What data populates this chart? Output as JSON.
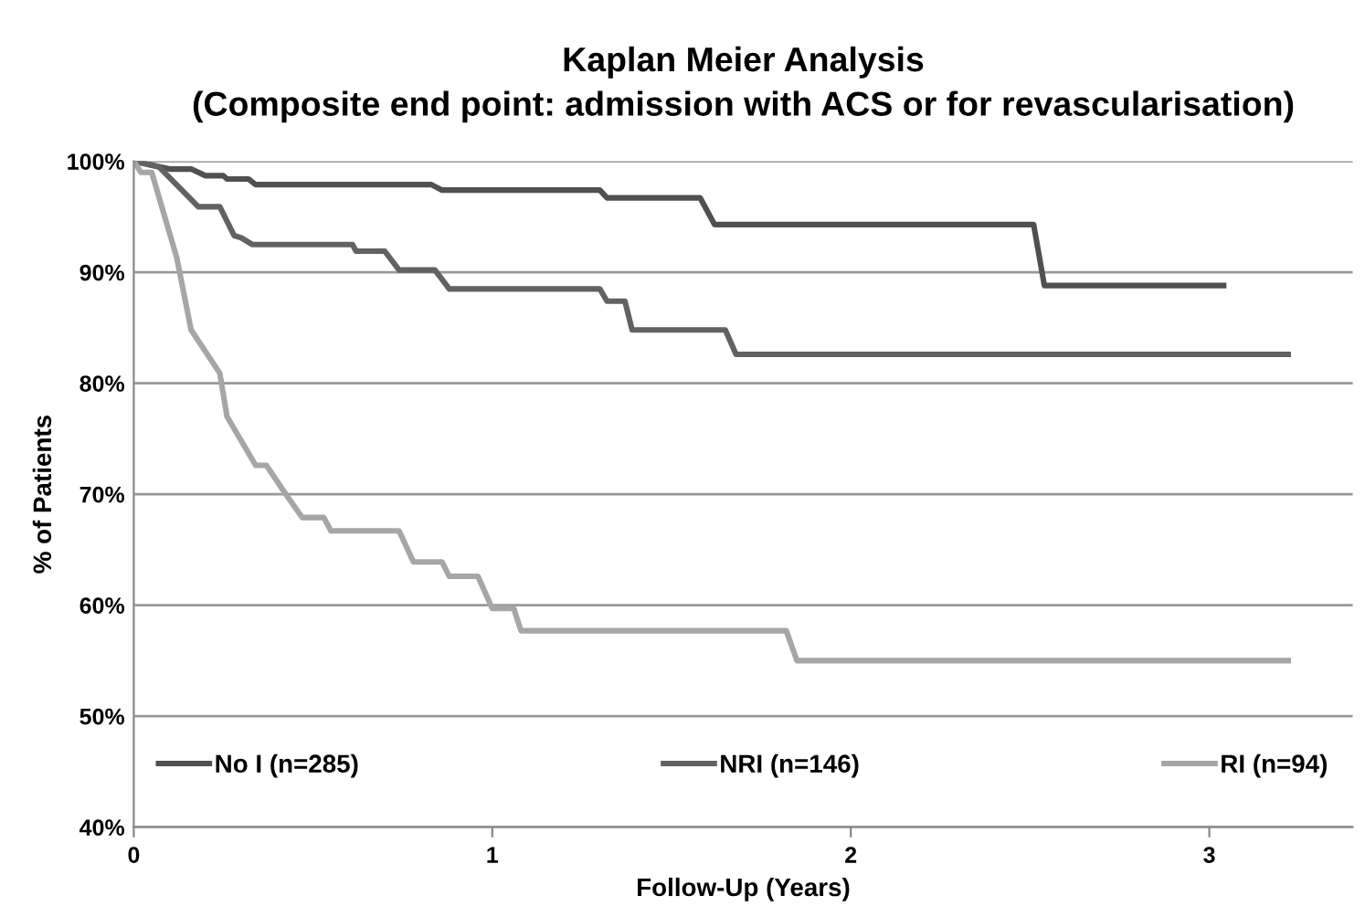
{
  "chart_data": {
    "type": "line",
    "title": "Kaplan Meier Analysis\n(Composite end point: admission with ACS or for revascularisation)",
    "xlabel": "Follow-Up (Years)",
    "ylabel": "% of Patients",
    "xlim": [
      0,
      3.4
    ],
    "xticks": [
      0,
      1,
      2,
      3
    ],
    "ylim": [
      40,
      100
    ],
    "yticks": [
      {
        "value": 40,
        "label": "40%"
      },
      {
        "value": 50,
        "label": "50%"
      },
      {
        "value": 60,
        "label": "60%"
      },
      {
        "value": 70,
        "label": "70%"
      },
      {
        "value": 80,
        "label": "80%"
      },
      {
        "value": 90,
        "label": "90%"
      },
      {
        "value": 100,
        "label": "100%"
      }
    ],
    "grid": "y",
    "legend": "bottom",
    "marker": "none",
    "line_style": "solid",
    "series": [
      {
        "name": "No I (n=285)",
        "color": "#505050",
        "x": [
          0,
          0.1,
          0.16,
          0.2,
          0.25,
          0.26,
          0.32,
          0.34,
          0.83,
          0.86,
          1.3,
          1.32,
          1.58,
          1.62,
          2.51,
          2.54,
          3.04
        ],
        "values": [
          100,
          99.3,
          99.3,
          98.7,
          98.7,
          98.4,
          98.4,
          97.9,
          97.9,
          97.4,
          97.4,
          96.7,
          96.7,
          94.3,
          94.3,
          88.8,
          88.8
        ]
      },
      {
        "name": "NRI (n=146)",
        "color": "#626262",
        "x": [
          0,
          0.07,
          0.18,
          0.24,
          0.28,
          0.3,
          0.33,
          0.61,
          0.62,
          0.7,
          0.74,
          0.84,
          0.88,
          1.3,
          1.32,
          1.37,
          1.39,
          1.65,
          1.68,
          3.22
        ],
        "values": [
          100,
          99.5,
          95.9,
          95.9,
          93.3,
          93.1,
          92.5,
          92.5,
          91.9,
          91.9,
          90.2,
          90.2,
          88.5,
          88.5,
          87.4,
          87.4,
          84.8,
          84.8,
          82.6,
          82.6
        ]
      },
      {
        "name": "RI (n=94)",
        "color": "#a6a6a6",
        "x": [
          0,
          0.02,
          0.05,
          0.09,
          0.12,
          0.16,
          0.24,
          0.26,
          0.34,
          0.37,
          0.42,
          0.47,
          0.53,
          0.55,
          0.74,
          0.78,
          0.86,
          0.88,
          0.96,
          1.0,
          1.06,
          1.08,
          1.82,
          1.85,
          3.22
        ],
        "values": [
          100,
          99.0,
          99.0,
          94.6,
          91.3,
          84.8,
          80.9,
          77.0,
          72.6,
          72.6,
          70.2,
          67.9,
          67.9,
          66.7,
          66.7,
          63.9,
          63.9,
          62.6,
          62.6,
          59.7,
          59.7,
          57.7,
          57.7,
          55.0,
          55.0
        ]
      }
    ]
  }
}
